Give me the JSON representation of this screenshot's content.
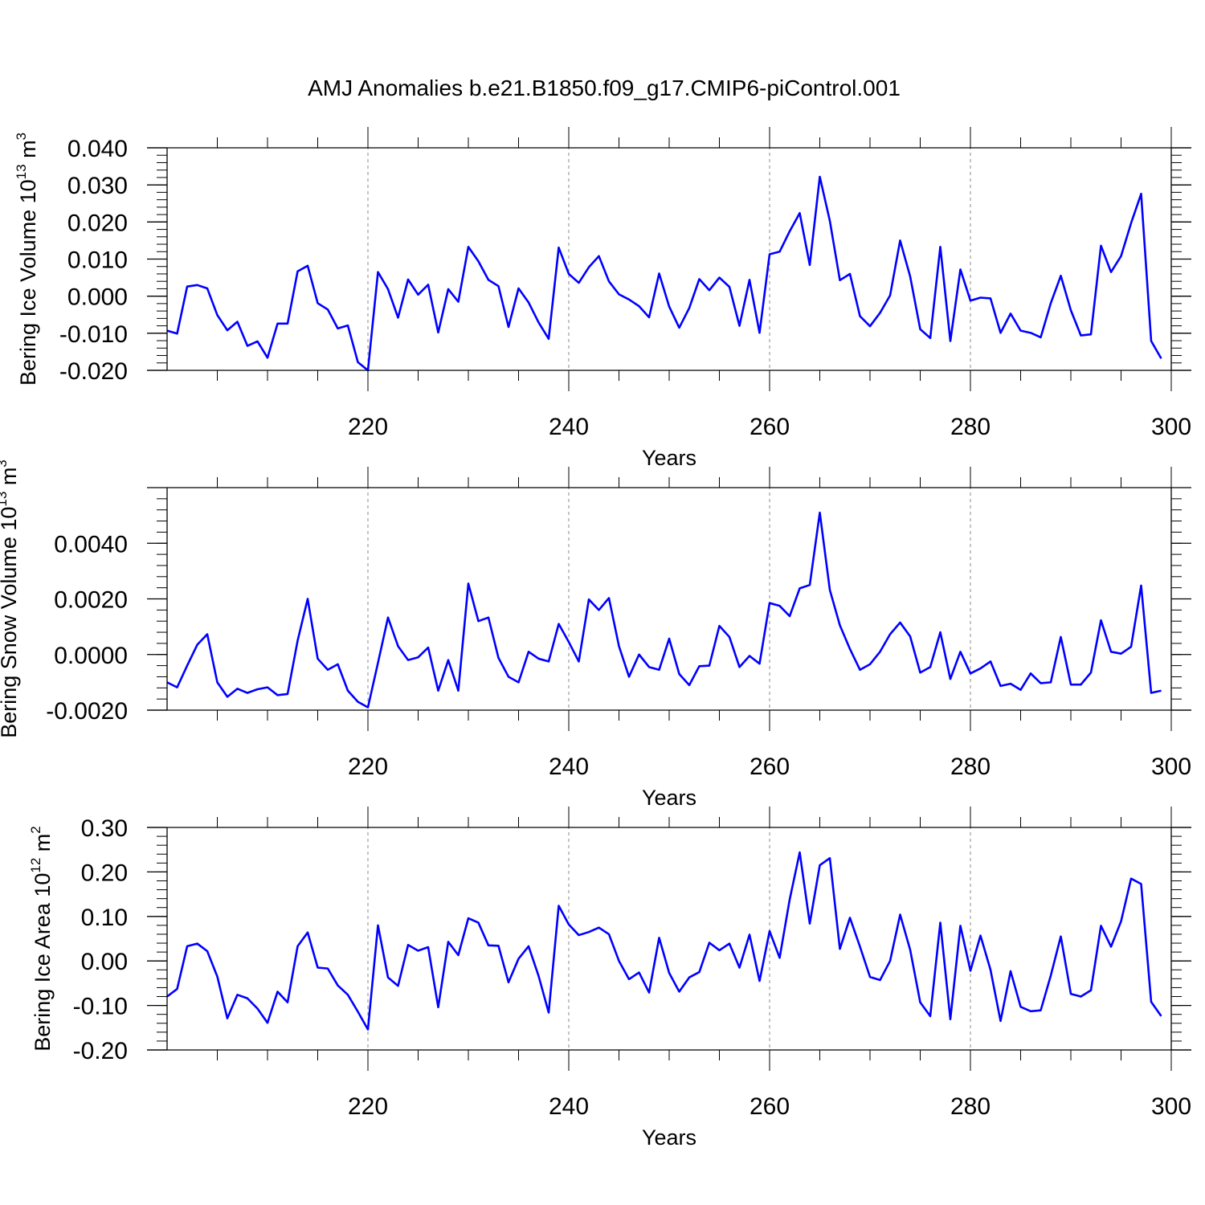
{
  "figure_title": "AMJ Anomalies b.e21.B1850.f09_g17.CMIP6-piControl.001",
  "colors": {
    "series": "#0000ff",
    "axes": "#000000",
    "grid": "#888888"
  },
  "chart_data": [
    {
      "type": "line",
      "title": "",
      "xlabel": "Years",
      "ylabel": "Bering Ice Volume 10^13 m^3",
      "ylabel_parts": {
        "main": "Bering Ice Volume 10",
        "exp1": "13",
        "mid": " m",
        "exp2": "3"
      },
      "xlim": [
        200,
        300
      ],
      "ylim": [
        -0.02,
        0.04
      ],
      "xticks": [
        220,
        240,
        260,
        280,
        300
      ],
      "xtick_labels": [
        "220",
        "240",
        "260",
        "280",
        "300"
      ],
      "yticks": [
        -0.02,
        -0.01,
        0.0,
        0.01,
        0.02,
        0.03,
        0.04
      ],
      "ytick_labels": [
        "-0.020",
        "-0.010",
        "0.000",
        "0.010",
        "0.020",
        "0.030",
        "0.040"
      ],
      "grid_x": [
        220,
        240,
        260,
        280
      ],
      "series": [
        {
          "name": "Bering Ice Volume",
          "x_start": 200,
          "values": [
            -0.0093,
            -0.0101,
            0.0026,
            0.003,
            0.0021,
            -0.0051,
            -0.0092,
            -0.0069,
            -0.0134,
            -0.0122,
            -0.0166,
            -0.0074,
            -0.0074,
            0.0067,
            0.0082,
            -0.0019,
            -0.0036,
            -0.0087,
            -0.0079,
            -0.0178,
            -0.02,
            0.0065,
            0.0019,
            -0.0058,
            0.0045,
            0.0004,
            0.0031,
            -0.0098,
            0.0019,
            -0.0015,
            0.0133,
            0.0094,
            0.0044,
            0.0027,
            -0.0083,
            0.0021,
            -0.0017,
            -0.0071,
            -0.0115,
            0.0131,
            0.006,
            0.0036,
            0.0078,
            0.0108,
            0.004,
            0.0005,
            -0.0009,
            -0.0027,
            -0.0057,
            0.0061,
            -0.0028,
            -0.0085,
            -0.0032,
            0.0046,
            0.0016,
            0.005,
            0.0025,
            -0.008,
            0.0044,
            -0.0099,
            0.0113,
            0.012,
            0.0175,
            0.0224,
            0.0084,
            0.0322,
            0.0203,
            0.0043,
            0.006,
            -0.0054,
            -0.0081,
            -0.0045,
            0.0002,
            0.015,
            0.0053,
            -0.0089,
            -0.0113,
            0.0133,
            -0.0121,
            0.0072,
            -0.0012,
            -0.0004,
            -0.0006,
            -0.0099,
            -0.0047,
            -0.0093,
            -0.0099,
            -0.0111,
            -0.0019,
            0.0055,
            -0.0038,
            -0.0106,
            -0.0103,
            0.0136,
            0.0065,
            0.0108,
            0.0197,
            0.0276,
            -0.0121,
            -0.0168
          ]
        }
      ]
    },
    {
      "type": "line",
      "title": "",
      "xlabel": "Years",
      "ylabel": "Bering Snow Volume 10^13 m^3",
      "ylabel_parts": {
        "main": "Bering Snow Volume 10",
        "exp1": "13",
        "mid": " m",
        "exp2": "3"
      },
      "xlim": [
        200,
        300
      ],
      "ylim": [
        -0.002,
        0.006
      ],
      "xticks": [
        220,
        240,
        260,
        280,
        300
      ],
      "xtick_labels": [
        "220",
        "240",
        "260",
        "280",
        "300"
      ],
      "yticks": [
        -0.002,
        0.0,
        0.002,
        0.004
      ],
      "ytick_labels": [
        "-0.0020",
        "0.0000",
        "0.0020",
        "0.0040"
      ],
      "grid_x": [
        220,
        240,
        260,
        280
      ],
      "series": [
        {
          "name": "Bering Snow Volume",
          "x_start": 200,
          "values": [
            -0.001,
            -0.00118,
            -0.0004,
            0.00035,
            0.00073,
            -0.001,
            -0.00152,
            -0.00123,
            -0.00138,
            -0.00125,
            -0.00118,
            -0.00146,
            -0.00142,
            0.0005,
            0.002,
            -0.00015,
            -0.00055,
            -0.00035,
            -0.0013,
            -0.0017,
            -0.0019,
            -0.0003,
            0.00133,
            0.0003,
            -0.0002,
            -0.0001,
            0.00025,
            -0.0013,
            -0.0002,
            -0.0013,
            0.00255,
            0.0012,
            0.00133,
            -0.00012,
            -0.0008,
            -0.001,
            0.0001,
            -0.00015,
            -0.00025,
            0.0011,
            0.00045,
            -0.00025,
            0.00198,
            0.0016,
            0.00203,
            0.0003,
            -0.0008,
            0.0,
            -0.00045,
            -0.00055,
            0.00057,
            -0.0007,
            -0.0011,
            -0.00042,
            -0.0004,
            0.00103,
            0.00063,
            -0.00045,
            -5e-05,
            -0.00033,
            0.00185,
            0.00175,
            0.00138,
            0.00238,
            0.0025,
            0.0051,
            0.00232,
            0.00105,
            0.0002,
            -0.00055,
            -0.00035,
            0.0001,
            0.00073,
            0.00115,
            0.00065,
            -0.00065,
            -0.00045,
            0.0008,
            -0.00088,
            0.0001,
            -0.00068,
            -0.0005,
            -0.00025,
            -0.00113,
            -0.00105,
            -0.00127,
            -0.00068,
            -0.00103,
            -0.001,
            0.00063,
            -0.00108,
            -0.00108,
            -0.00065,
            0.00123,
            0.0001,
            3e-05,
            0.00028,
            0.00248,
            -0.00138,
            -0.0013
          ]
        }
      ]
    },
    {
      "type": "line",
      "title": "",
      "xlabel": "Years",
      "ylabel": "Bering Ice Area 10^12 m^2",
      "ylabel_parts": {
        "main": "Bering Ice Area 10",
        "exp1": "12",
        "mid": " m",
        "exp2": "2"
      },
      "xlim": [
        200,
        300
      ],
      "ylim": [
        -0.2,
        0.3
      ],
      "xticks": [
        220,
        240,
        260,
        280,
        300
      ],
      "xtick_labels": [
        "220",
        "240",
        "260",
        "280",
        "300"
      ],
      "yticks": [
        -0.2,
        -0.1,
        0.0,
        0.1,
        0.2,
        0.3
      ],
      "ytick_labels": [
        "-0.20",
        "-0.10",
        "0.00",
        "0.10",
        "0.20",
        "0.30"
      ],
      "grid_x": [
        220,
        240,
        260,
        280
      ],
      "series": [
        {
          "name": "Bering Ice Area",
          "x_start": 200,
          "values": [
            -0.08,
            -0.063,
            0.033,
            0.039,
            0.022,
            -0.035,
            -0.129,
            -0.076,
            -0.084,
            -0.107,
            -0.139,
            -0.069,
            -0.093,
            0.033,
            0.064,
            -0.015,
            -0.017,
            -0.055,
            -0.076,
            -0.114,
            -0.154,
            0.08,
            -0.037,
            -0.056,
            0.036,
            0.023,
            0.031,
            -0.104,
            0.043,
            0.013,
            0.096,
            0.086,
            0.035,
            0.034,
            -0.048,
            0.005,
            0.033,
            -0.034,
            -0.116,
            0.124,
            0.082,
            0.058,
            0.065,
            0.075,
            0.06,
            0.0,
            -0.041,
            -0.026,
            -0.071,
            0.052,
            -0.027,
            -0.069,
            -0.037,
            -0.025,
            0.041,
            0.024,
            0.039,
            -0.015,
            0.059,
            -0.045,
            0.067,
            0.007,
            0.138,
            0.244,
            0.084,
            0.215,
            0.231,
            0.027,
            0.097,
            0.032,
            -0.036,
            -0.043,
            0.0,
            0.104,
            0.025,
            -0.093,
            -0.124,
            0.086,
            -0.131,
            0.079,
            -0.022,
            0.057,
            -0.02,
            -0.135,
            -0.023,
            -0.103,
            -0.113,
            -0.111,
            -0.033,
            0.055,
            -0.074,
            -0.08,
            -0.066,
            0.079,
            0.032,
            0.089,
            0.185,
            0.173,
            -0.092,
            -0.124
          ]
        }
      ]
    }
  ]
}
